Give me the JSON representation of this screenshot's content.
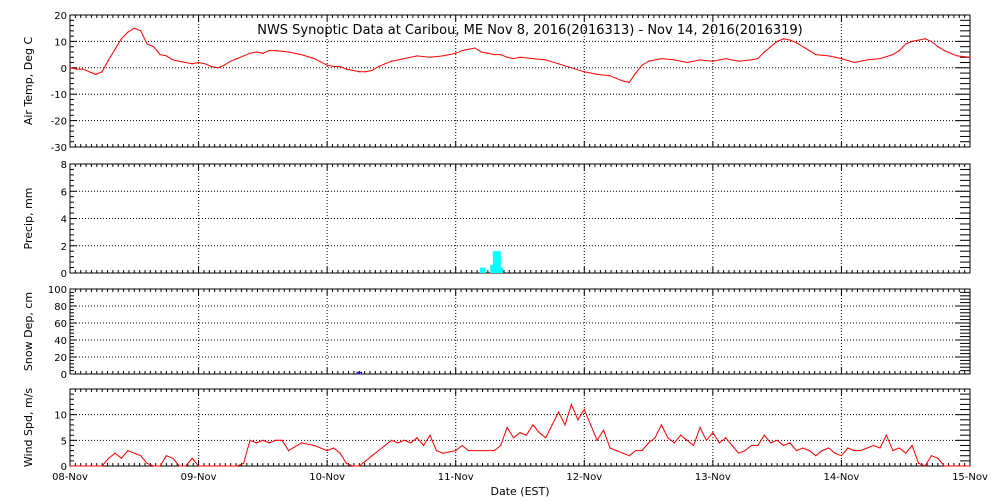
{
  "title": "NWS Synoptic Data at Caribou, ME   Nov  8, 2016(2016313) - Nov 14, 2016(2016319)",
  "xlabel": "Date (EST)",
  "x_ticks": [
    "08-Nov",
    "09-Nov",
    "10-Nov",
    "11-Nov",
    "12-Nov",
    "13-Nov",
    "14-Nov",
    "15-Nov"
  ],
  "colors": {
    "line": "#ff0000",
    "precip": "#00ffff",
    "snow": "#000080",
    "grid": "#000000"
  },
  "chart_data": [
    {
      "type": "line",
      "ylabel": "Air Temp, Deg C",
      "ylim": [
        -30,
        20
      ],
      "yticks": [
        -30,
        -20,
        -10,
        0,
        10,
        20
      ],
      "x_unit": "days since 08-Nov 00:00 EST",
      "xlim": [
        0,
        7
      ],
      "grid": true,
      "series": [
        {
          "name": "",
          "x": [
            0,
            0.05,
            0.1,
            0.15,
            0.2,
            0.25,
            0.3,
            0.35,
            0.4,
            0.45,
            0.5,
            0.55,
            0.6,
            0.65,
            0.7,
            0.75,
            0.8,
            0.85,
            0.9,
            0.95,
            1.0,
            1.05,
            1.1,
            1.15,
            1.2,
            1.25,
            1.3,
            1.35,
            1.4,
            1.45,
            1.5,
            1.55,
            1.6,
            1.7,
            1.8,
            1.9,
            2.0,
            2.05,
            2.1,
            2.15,
            2.2,
            2.25,
            2.3,
            2.35,
            2.4,
            2.45,
            2.5,
            2.6,
            2.7,
            2.8,
            2.9,
            3.0,
            3.05,
            3.1,
            3.15,
            3.2,
            3.25,
            3.3,
            3.35,
            3.4,
            3.45,
            3.5,
            3.6,
            3.7,
            3.8,
            3.9,
            4.0,
            4.1,
            4.2,
            4.25,
            4.3,
            4.35,
            4.4,
            4.45,
            4.5,
            4.6,
            4.7,
            4.8,
            4.9,
            5.0,
            5.1,
            5.2,
            5.3,
            5.35,
            5.4,
            5.45,
            5.5,
            5.55,
            5.6,
            5.65,
            5.7,
            5.75,
            5.8,
            5.9,
            5.95,
            6.0,
            6.1,
            6.2,
            6.3,
            6.4,
            6.45,
            6.5,
            6.55,
            6.6,
            6.65,
            6.7,
            6.75,
            6.8,
            6.85,
            6.9,
            7.0
          ],
          "values": [
            0,
            -0.5,
            -0.5,
            -1.5,
            -2.5,
            -1.5,
            3,
            7,
            11,
            13.5,
            15,
            14,
            9,
            8,
            5,
            4.5,
            3,
            2.5,
            2,
            1.5,
            2,
            1.5,
            0.5,
            0,
            1,
            2.5,
            3.5,
            4.5,
            5.5,
            6,
            5.5,
            6.5,
            6.5,
            6,
            5,
            3.5,
            1,
            0.5,
            0.5,
            -0.5,
            -1,
            -1.5,
            -1.5,
            -1,
            0.5,
            1.5,
            2.5,
            3.5,
            4.5,
            4,
            4.5,
            5.5,
            6.5,
            7,
            7.5,
            6,
            5.5,
            5,
            5,
            4,
            3.5,
            4,
            3.5,
            3,
            1.5,
            0,
            -1.5,
            -2.5,
            -3,
            -4,
            -5,
            -5.5,
            -2,
            1,
            2.5,
            3.5,
            3,
            2,
            3,
            2.5,
            3.5,
            2.5,
            3,
            3.5,
            6,
            8,
            10,
            11,
            10.5,
            9.5,
            8,
            6.5,
            5,
            4.5,
            4,
            3.5,
            2,
            3,
            3.5,
            5,
            6.5,
            9,
            10,
            10.5,
            11,
            10,
            8,
            6.5,
            5.5,
            4.5,
            4
          ]
        }
      ]
    },
    {
      "type": "bar",
      "ylabel": "Precip, mm",
      "ylim": [
        0,
        8
      ],
      "yticks": [
        0,
        2,
        4,
        6,
        8
      ],
      "x_unit": "days since 08-Nov 00:00 EST",
      "xlim": [
        0,
        7
      ],
      "grid": true,
      "bar_width_days": 0.042,
      "x": [
        3.21,
        3.29,
        3.31,
        3.33,
        3.35
      ],
      "values": [
        0.4,
        0.6,
        1.6,
        1.6,
        0.4
      ]
    },
    {
      "type": "bar",
      "ylabel": "Snow Dep, cm",
      "ylim": [
        0,
        100
      ],
      "yticks": [
        0,
        20,
        40,
        60,
        80,
        100
      ],
      "x_unit": "days since 08-Nov 00:00 EST",
      "xlim": [
        0,
        7
      ],
      "grid": true,
      "bar_width_days": 0.035,
      "x": [
        2.25
      ],
      "values": [
        2
      ]
    },
    {
      "type": "line",
      "ylabel": "Wind Spd, m/s",
      "ylim": [
        0,
        15
      ],
      "yticks": [
        0,
        5,
        10
      ],
      "x_unit": "days since 08-Nov 00:00 EST",
      "xlim": [
        0,
        7
      ],
      "grid": true,
      "series": [
        {
          "name": "",
          "x": [
            0,
            0.25,
            0.3,
            0.35,
            0.4,
            0.45,
            0.5,
            0.55,
            0.6,
            0.65,
            0.7,
            0.75,
            0.8,
            0.85,
            0.9,
            0.95,
            1.0,
            1.05,
            1.1,
            1.15,
            1.2,
            1.25,
            1.3,
            1.35,
            1.4,
            1.45,
            1.5,
            1.55,
            1.6,
            1.65,
            1.7,
            1.8,
            1.9,
            2.0,
            2.05,
            2.1,
            2.15,
            2.2,
            2.25,
            2.3,
            2.35,
            2.4,
            2.5,
            2.55,
            2.6,
            2.65,
            2.7,
            2.75,
            2.8,
            2.85,
            2.9,
            3.0,
            3.05,
            3.1,
            3.2,
            3.3,
            3.35,
            3.4,
            3.45,
            3.5,
            3.55,
            3.6,
            3.65,
            3.7,
            3.75,
            3.8,
            3.85,
            3.9,
            3.95,
            4.0,
            4.05,
            4.1,
            4.15,
            4.2,
            4.25,
            4.3,
            4.35,
            4.4,
            4.45,
            4.5,
            4.55,
            4.6,
            4.65,
            4.7,
            4.75,
            4.8,
            4.85,
            4.9,
            4.95,
            5.0,
            5.05,
            5.1,
            5.15,
            5.2,
            5.25,
            5.3,
            5.35,
            5.4,
            5.45,
            5.5,
            5.55,
            5.6,
            5.65,
            5.7,
            5.75,
            5.8,
            5.85,
            5.9,
            5.95,
            6.0,
            6.05,
            6.1,
            6.15,
            6.2,
            6.25,
            6.3,
            6.35,
            6.4,
            6.45,
            6.5,
            6.55,
            6.6,
            6.65,
            6.7,
            6.75,
            6.8,
            6.85,
            6.9,
            6.95,
            7.0
          ],
          "values": [
            0,
            0,
            1.5,
            2.5,
            1.5,
            3,
            2.5,
            2,
            0.5,
            0,
            0,
            2,
            1.5,
            0,
            0,
            1.5,
            0,
            0,
            0,
            0,
            0,
            0,
            0,
            0.5,
            5,
            4.5,
            5,
            4.5,
            5,
            5,
            3,
            4.5,
            4,
            3,
            3.5,
            2.5,
            0.5,
            0,
            0,
            1,
            2,
            3,
            5,
            4.5,
            5,
            4.5,
            5.5,
            4,
            6,
            3,
            2.5,
            3,
            4,
            3,
            3,
            3,
            4,
            7.5,
            5.5,
            6.5,
            6,
            8,
            6.5,
            5.5,
            8,
            10.5,
            8,
            12,
            9,
            11,
            8,
            5,
            7,
            3.5,
            3,
            2.5,
            2,
            3,
            3,
            4.5,
            5.5,
            8,
            5.5,
            4.5,
            6,
            5,
            4,
            7.5,
            5,
            6.5,
            4.5,
            5.5,
            4,
            2.5,
            3,
            4,
            4,
            6,
            4.5,
            5,
            4,
            4.5,
            3,
            3.5,
            3,
            2,
            3,
            3.5,
            2.5,
            2,
            3.5,
            3,
            3,
            3.5,
            4,
            3.5,
            6,
            3,
            3.5,
            2.5,
            4,
            0.5,
            0,
            2,
            1.5,
            0,
            0,
            0,
            0,
            0
          ]
        }
      ]
    }
  ]
}
